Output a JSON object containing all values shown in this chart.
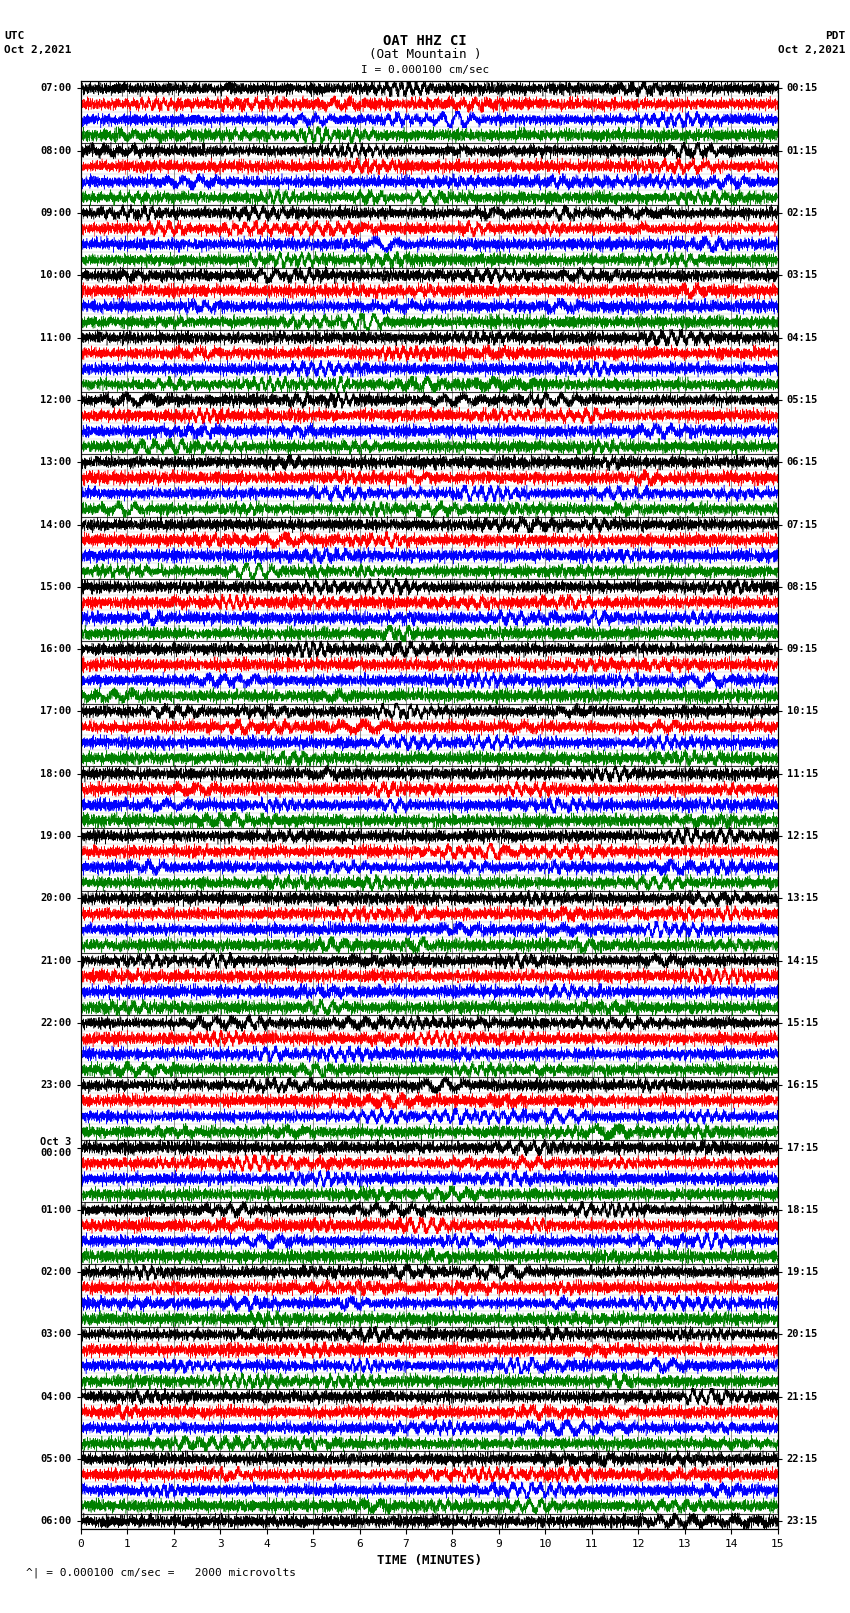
{
  "title_line1": "OAT HHZ CI",
  "title_line2": "(Oat Mountain )",
  "scale_label": "I = 0.000100 cm/sec",
  "left_header_line1": "UTC",
  "left_header_line2": "Oct 2,2021",
  "right_header_line1": "PDT",
  "right_header_line2": "Oct 2,2021",
  "bottom_label": "TIME (MINUTES)",
  "bottom_note": "= 0.000100 cm/sec =   2000 microvolts",
  "xlim": [
    0,
    15
  ],
  "xticks": [
    0,
    1,
    2,
    3,
    4,
    5,
    6,
    7,
    8,
    9,
    10,
    11,
    12,
    13,
    14,
    15
  ],
  "left_times": [
    "07:00",
    "",
    "",
    "",
    "08:00",
    "",
    "",
    "",
    "09:00",
    "",
    "",
    "",
    "10:00",
    "",
    "",
    "",
    "11:00",
    "",
    "",
    "",
    "12:00",
    "",
    "",
    "",
    "13:00",
    "",
    "",
    "",
    "14:00",
    "",
    "",
    "",
    "15:00",
    "",
    "",
    "",
    "16:00",
    "",
    "",
    "",
    "17:00",
    "",
    "",
    "",
    "18:00",
    "",
    "",
    "",
    "19:00",
    "",
    "",
    "",
    "20:00",
    "",
    "",
    "",
    "21:00",
    "",
    "",
    "",
    "22:00",
    "",
    "",
    "",
    "23:00",
    "",
    "",
    "",
    "Oct 3\n00:00",
    "",
    "",
    "",
    "01:00",
    "",
    "",
    "",
    "02:00",
    "",
    "",
    "",
    "03:00",
    "",
    "",
    "",
    "04:00",
    "",
    "",
    "",
    "05:00",
    "",
    "",
    "",
    "06:00"
  ],
  "right_times": [
    "00:15",
    "",
    "",
    "",
    "01:15",
    "",
    "",
    "",
    "02:15",
    "",
    "",
    "",
    "03:15",
    "",
    "",
    "",
    "04:15",
    "",
    "",
    "",
    "05:15",
    "",
    "",
    "",
    "06:15",
    "",
    "",
    "",
    "07:15",
    "",
    "",
    "",
    "08:15",
    "",
    "",
    "",
    "09:15",
    "",
    "",
    "",
    "10:15",
    "",
    "",
    "",
    "11:15",
    "",
    "",
    "",
    "12:15",
    "",
    "",
    "",
    "13:15",
    "",
    "",
    "",
    "14:15",
    "",
    "",
    "",
    "15:15",
    "",
    "",
    "",
    "16:15",
    "",
    "",
    "",
    "17:15",
    "",
    "",
    "",
    "18:15",
    "",
    "",
    "",
    "19:15",
    "",
    "",
    "",
    "20:15",
    "",
    "",
    "",
    "21:15",
    "",
    "",
    "",
    "22:15",
    "",
    "",
    "",
    "23:15"
  ],
  "num_rows": 93,
  "row_colors": [
    "black",
    "red",
    "blue",
    "green"
  ],
  "bg_color": "white",
  "trace_amplitude": 0.45,
  "high_freq": 80.0,
  "noise_scale": 1.0
}
